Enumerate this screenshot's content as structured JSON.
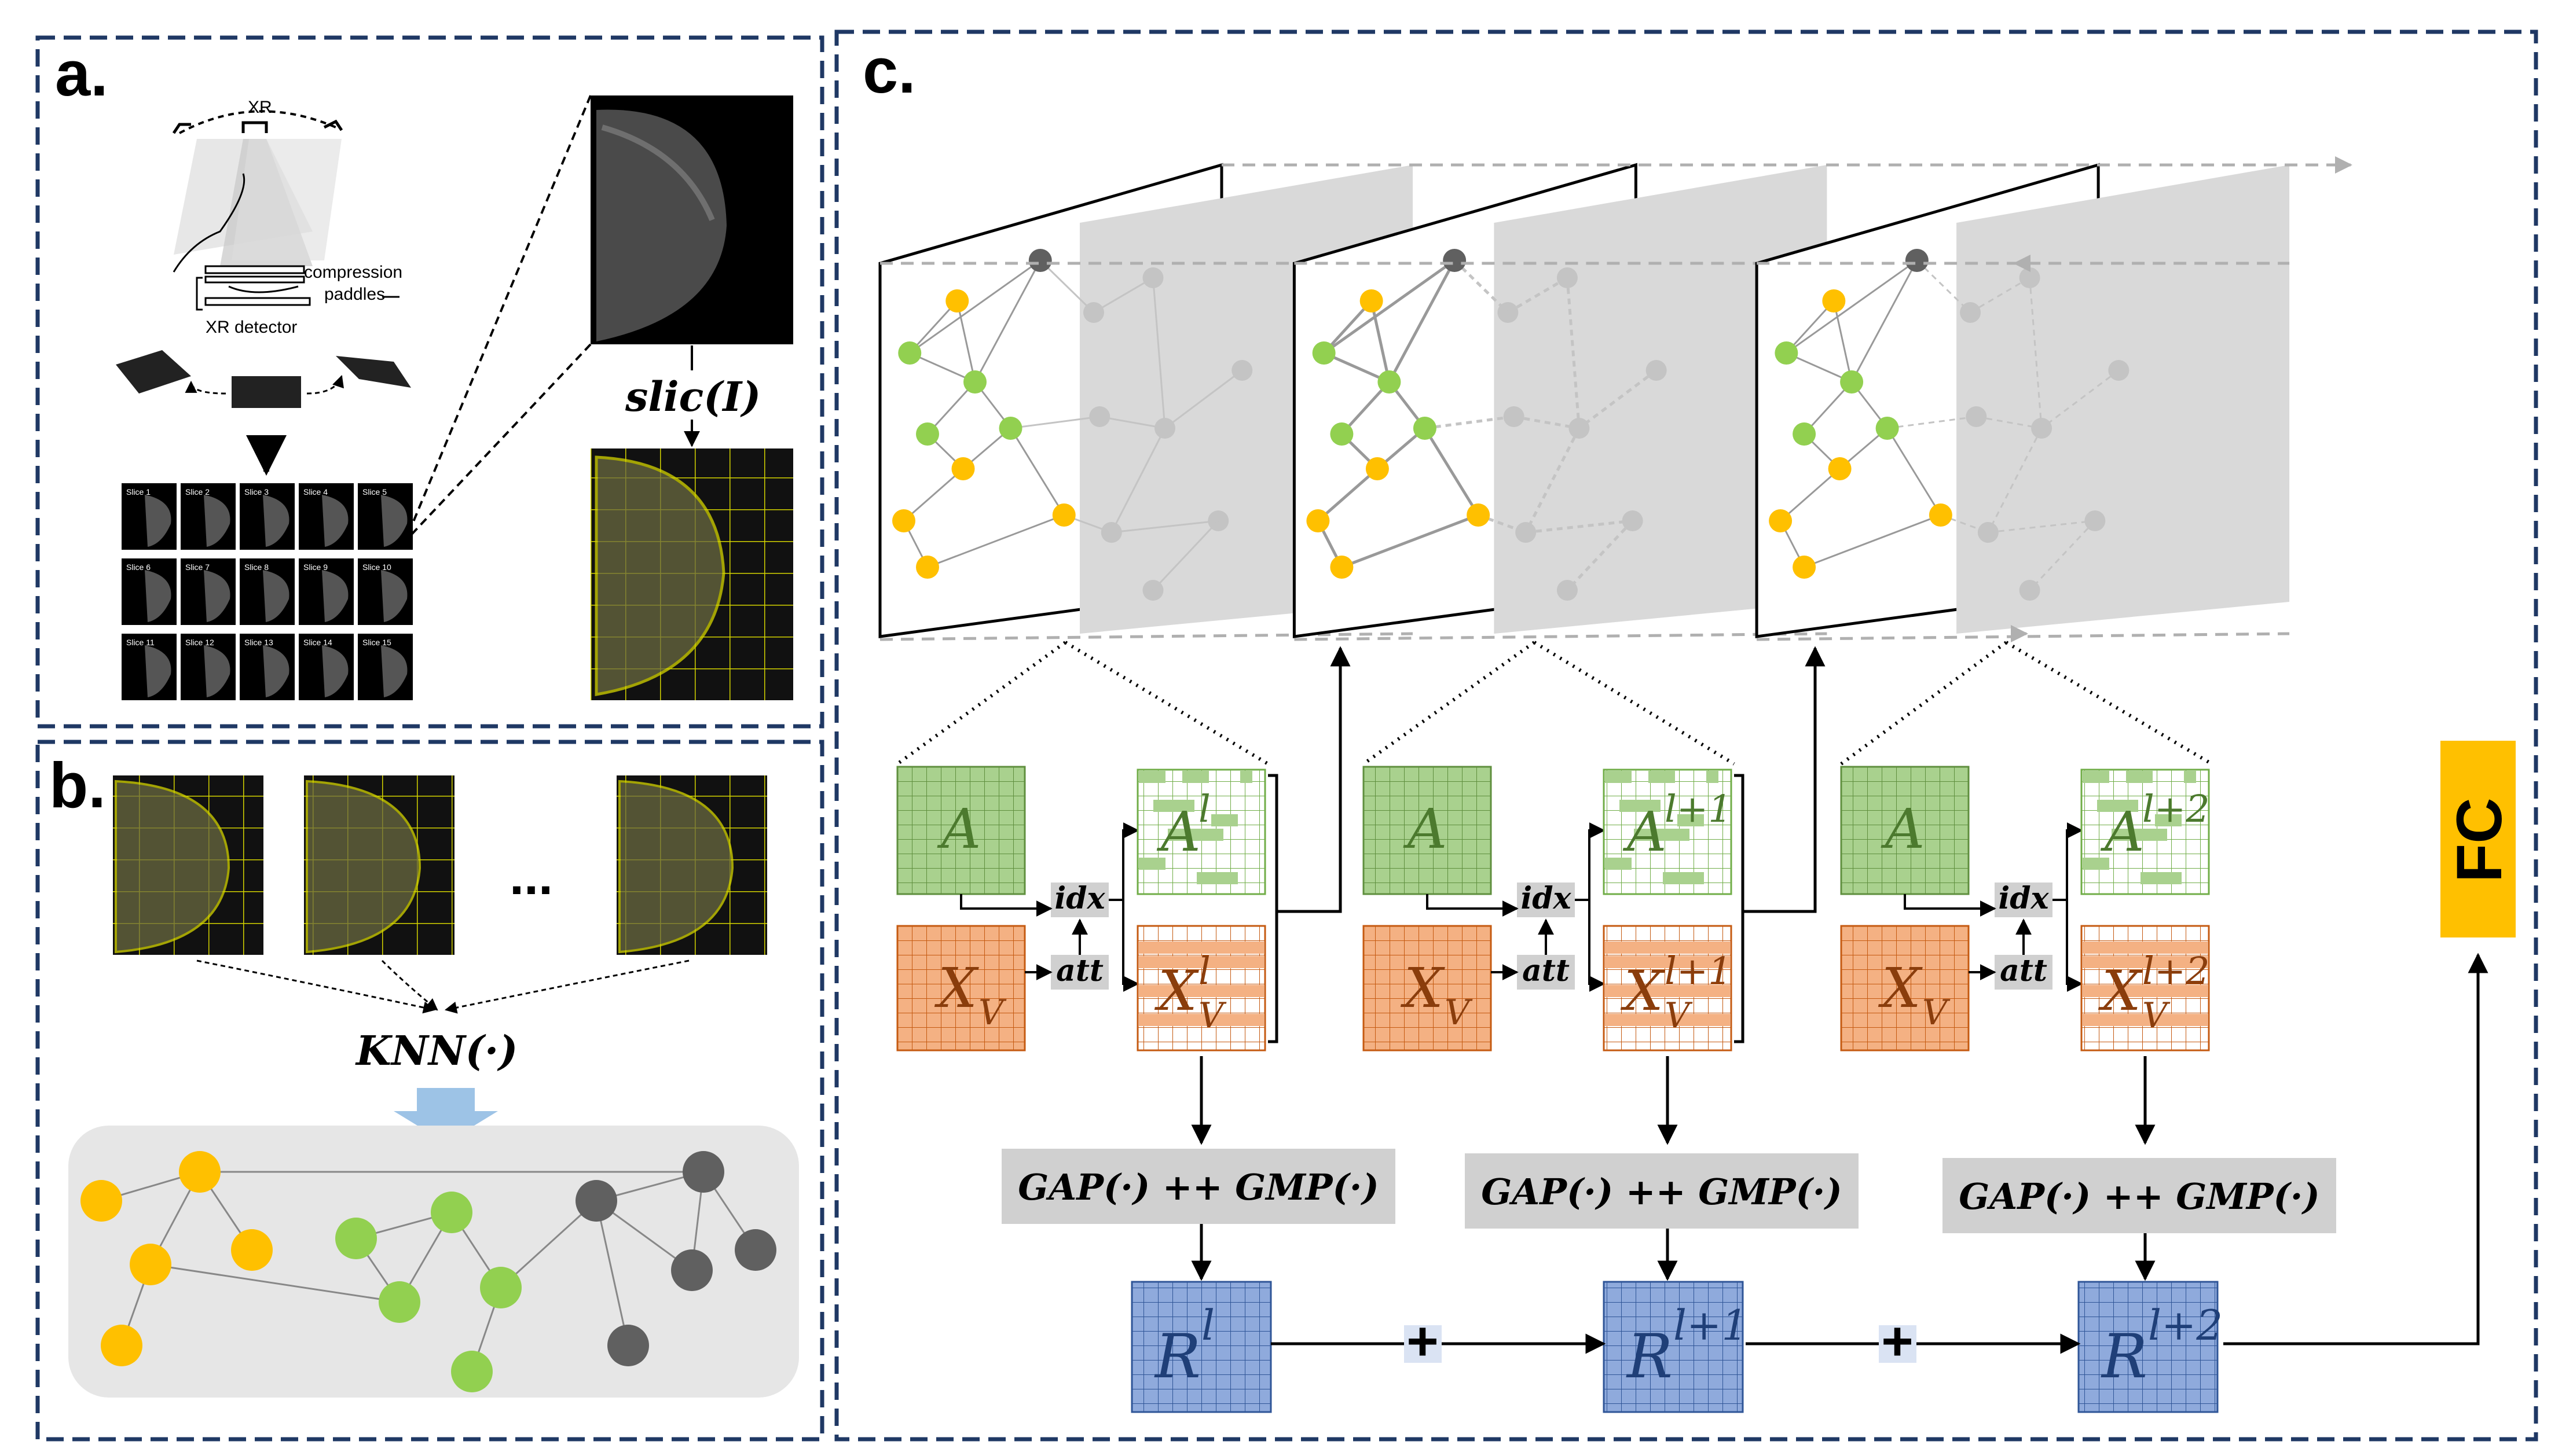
{
  "panels": {
    "a": {
      "label": "a.",
      "xr_label": "XR",
      "paddles_label_1": "compression",
      "paddles_label_2": "paddles",
      "detector_label": "XR detector",
      "slic_label": "slic(I)",
      "slice_labels": [
        "Slice 1",
        "Slice 2",
        "Slice 3",
        "Slice 4",
        "Slice 5",
        "Slice 6",
        "Slice 7",
        "Slice 8",
        "Slice 9",
        "Slice 10",
        "Slice 11",
        "Slice 12",
        "Slice 13",
        "Slice 14",
        "Slice 15"
      ]
    },
    "b": {
      "label": "b.",
      "ellipsis": "...",
      "knn_label": "KNN(·)"
    },
    "c": {
      "label": "c.",
      "fc_label": "FC",
      "pool_label": "GAP(·) ++ GMP(·)",
      "idx_label": "idx",
      "att_label": "att",
      "plus": "+",
      "stages": [
        {
          "A": "A",
          "XV_base": "X",
          "XV_sub": "V",
          "Al_base": "A",
          "Al_sup": "l",
          "XVl_sup": "l",
          "R_base": "R",
          "R_sup": "l"
        },
        {
          "A": "A",
          "XV_base": "X",
          "XV_sub": "V",
          "Al_base": "A",
          "Al_sup": "l+1",
          "XVl_sup": "l+1",
          "R_base": "R",
          "R_sup": "l+1"
        },
        {
          "A": "A",
          "XV_base": "X",
          "XV_sub": "V",
          "Al_base": "A",
          "Al_sup": "l+2",
          "XVl_sup": "l+2",
          "R_base": "R",
          "R_sup": "l+2"
        }
      ]
    }
  },
  "colors": {
    "border": "#1f3864",
    "yellow_node": "#ffc000",
    "green_node": "#92d050",
    "gray_node": "#606060",
    "green_matrix": "#a9d18e",
    "orange_matrix": "#f4b183",
    "blue_matrix": "#8faadc",
    "pool_box": "#d0d0d0",
    "fc_box": "#ffc000",
    "knn_arrow": "#9dc3e6"
  }
}
